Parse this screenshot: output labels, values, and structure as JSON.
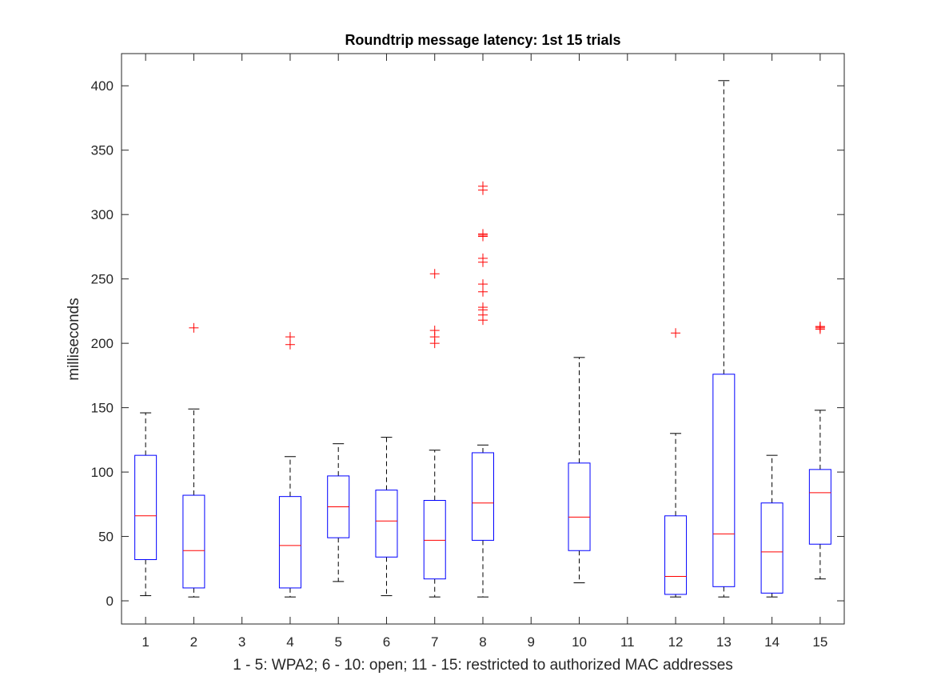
{
  "chart_data": {
    "type": "boxplot",
    "title": "Roundtrip message latency: 1st 15 trials",
    "xlabel": "1 - 5: WPA2; 6 - 10: open; 11 - 15: restricted to authorized MAC addresses",
    "ylabel": "milliseconds",
    "xlim": [
      0.5,
      15.5
    ],
    "ylim": [
      -18,
      425
    ],
    "yticks": [
      0,
      50,
      100,
      150,
      200,
      250,
      300,
      350,
      400
    ],
    "grid": false,
    "colors": {
      "box": "#0000ff",
      "median": "#ff0000",
      "outlier": "#ff0000",
      "whisker": "#000000",
      "axes": "#262626"
    },
    "categories": [
      "1",
      "2",
      "3",
      "4",
      "5",
      "6",
      "7",
      "8",
      "9",
      "10",
      "11",
      "12",
      "13",
      "14",
      "15"
    ],
    "boxes": [
      {
        "x": 1,
        "min": 4,
        "q1": 32,
        "median": 66,
        "q3": 113,
        "max": 146,
        "outliers": []
      },
      {
        "x": 2,
        "min": 3,
        "q1": 10,
        "median": 39,
        "q3": 82,
        "max": 149,
        "outliers": [
          212
        ]
      },
      {
        "x": 3,
        "empty": true
      },
      {
        "x": 4,
        "min": 3,
        "q1": 10,
        "median": 43,
        "q3": 81,
        "max": 112,
        "outliers": [
          199,
          205
        ]
      },
      {
        "x": 5,
        "min": 15,
        "q1": 49,
        "median": 73,
        "q3": 97,
        "max": 122,
        "outliers": []
      },
      {
        "x": 6,
        "min": 4,
        "q1": 34,
        "median": 62,
        "q3": 86,
        "max": 127,
        "outliers": []
      },
      {
        "x": 7,
        "min": 3,
        "q1": 17,
        "median": 47,
        "q3": 78,
        "max": 117,
        "outliers": [
          200,
          205,
          210,
          254
        ]
      },
      {
        "x": 8,
        "min": 3,
        "q1": 47,
        "median": 76,
        "q3": 115,
        "max": 121,
        "outliers": [
          218,
          222,
          226,
          228,
          240,
          246,
          263,
          266,
          283,
          284,
          285,
          319,
          322
        ]
      },
      {
        "x": 9,
        "empty": true
      },
      {
        "x": 10,
        "min": 14,
        "q1": 39,
        "median": 65,
        "q3": 107,
        "max": 189,
        "outliers": []
      },
      {
        "x": 11,
        "empty": true
      },
      {
        "x": 12,
        "min": 3,
        "q1": 5,
        "median": 19,
        "q3": 66,
        "max": 130,
        "outliers": [
          208
        ]
      },
      {
        "x": 13,
        "min": 3,
        "q1": 11,
        "median": 52,
        "q3": 176,
        "max": 404,
        "outliers": []
      },
      {
        "x": 14,
        "min": 3,
        "q1": 6,
        "median": 38,
        "q3": 76,
        "max": 113,
        "outliers": []
      },
      {
        "x": 15,
        "min": 17,
        "q1": 44,
        "median": 84,
        "q3": 102,
        "max": 148,
        "outliers": [
          211,
          212,
          213,
          213
        ]
      }
    ]
  }
}
